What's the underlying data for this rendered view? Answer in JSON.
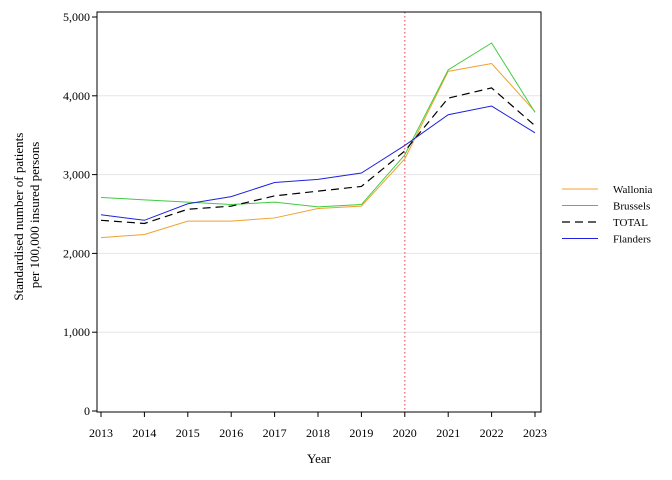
{
  "chart_data": {
    "type": "line",
    "xlabel": "Year",
    "ylabel_lines": [
      "Standardised number of patients",
      "per 100,000 insured persons"
    ],
    "x": [
      2013,
      2014,
      2015,
      2016,
      2017,
      2018,
      2019,
      2020,
      2021,
      2022,
      2023
    ],
    "x_tick_labels": [
      "2013",
      "2014",
      "2015",
      "2016",
      "2017",
      "2018",
      "2019",
      "2020",
      "2021",
      "2022",
      "2023"
    ],
    "ylim": [
      0,
      5000
    ],
    "y_ticks": [
      0,
      1000,
      2000,
      3000,
      4000,
      5000
    ],
    "y_tick_labels": [
      "0",
      "1,000",
      "2,000",
      "3,000",
      "4,000",
      "5,000"
    ],
    "grid": "horizontal",
    "legend_position": "right",
    "reference_line": {
      "x": 2020,
      "color": "#e06070",
      "style": "dotted"
    },
    "series": [
      {
        "name": "Wallonia",
        "color": "#f0a030",
        "dash": "solid",
        "values": [
          2200,
          2240,
          2410,
          2410,
          2450,
          2570,
          2600,
          3200,
          4310,
          4410,
          3800
        ]
      },
      {
        "name": "Brussels",
        "color": "#40cc40",
        "dash": "solid",
        "values": [
          2710,
          2680,
          2650,
          2620,
          2650,
          2590,
          2620,
          3250,
          4330,
          4670,
          3790
        ]
      },
      {
        "name": "TOTAL",
        "color": "#000000",
        "dash": "dashed",
        "values": [
          2420,
          2380,
          2560,
          2600,
          2730,
          2790,
          2850,
          3300,
          3970,
          4100,
          3620
        ]
      },
      {
        "name": "Flanders",
        "color": "#2020e0",
        "dash": "solid",
        "values": [
          2490,
          2420,
          2630,
          2720,
          2900,
          2940,
          3020,
          3370,
          3760,
          3870,
          3530
        ]
      }
    ]
  }
}
